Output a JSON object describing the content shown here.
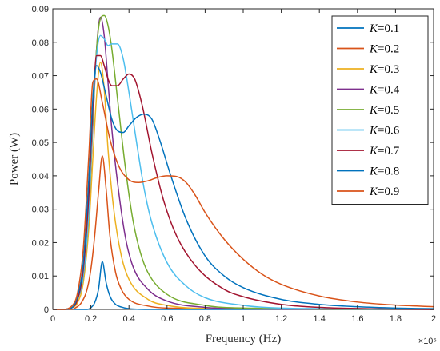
{
  "chart_data": {
    "type": "line",
    "xlabel": "Frequency (Hz)",
    "ylabel": "Power (W)",
    "x_multiplier_label": "×10⁵",
    "xlim": [
      0,
      2.0
    ],
    "ylim": [
      0,
      0.09
    ],
    "xticks": [
      "0",
      "0.2",
      "0.4",
      "0.6",
      "0.8",
      "1",
      "1.2",
      "1.4",
      "1.6",
      "1.8",
      "2"
    ],
    "yticks": [
      "0",
      "0.01",
      "0.02",
      "0.03",
      "0.04",
      "0.05",
      "0.06",
      "0.07",
      "0.08",
      "0.09"
    ],
    "grid": false,
    "legend_position": "top-right",
    "series": [
      {
        "name": "K=0.1",
        "label_var": "K",
        "label_val": "=0.1",
        "color": "#0072BD",
        "x": [
          0,
          0.05,
          0.1,
          0.15,
          0.18,
          0.2,
          0.22,
          0.24,
          0.26,
          0.28,
          0.3,
          0.33,
          0.36,
          0.4,
          0.5,
          0.6,
          2.0
        ],
        "y": [
          0,
          0,
          0,
          0,
          0,
          0.0005,
          0.002,
          0.006,
          0.0143,
          0.008,
          0.004,
          0.0015,
          0.0007,
          0.0002,
          0,
          0,
          0
        ]
      },
      {
        "name": "K=0.2",
        "label_var": "K",
        "label_val": "=0.2",
        "color": "#D95319",
        "x": [
          0,
          0.05,
          0.1,
          0.12,
          0.15,
          0.18,
          0.2,
          0.22,
          0.24,
          0.26,
          0.28,
          0.3,
          0.33,
          0.36,
          0.4,
          0.5,
          0.6,
          2.0
        ],
        "y": [
          0,
          0,
          0,
          0.0005,
          0.002,
          0.006,
          0.012,
          0.022,
          0.035,
          0.046,
          0.036,
          0.022,
          0.011,
          0.006,
          0.003,
          0.001,
          0.0004,
          0
        ]
      },
      {
        "name": "K=0.3",
        "label_var": "K",
        "label_val": "=0.3",
        "color": "#EDB120",
        "x": [
          0,
          0.05,
          0.1,
          0.13,
          0.16,
          0.19,
          0.21,
          0.23,
          0.25,
          0.27,
          0.29,
          0.32,
          0.36,
          0.4,
          0.5,
          0.6,
          0.8,
          2.0
        ],
        "y": [
          0,
          0,
          0.0005,
          0.002,
          0.008,
          0.025,
          0.045,
          0.064,
          0.074,
          0.066,
          0.048,
          0.03,
          0.016,
          0.009,
          0.003,
          0.0012,
          0.0003,
          0
        ]
      },
      {
        "name": "K=0.4",
        "label_var": "K",
        "label_val": "=0.4",
        "color": "#7E2F8E",
        "x": [
          0,
          0.05,
          0.1,
          0.13,
          0.16,
          0.19,
          0.21,
          0.23,
          0.25,
          0.27,
          0.29,
          0.31,
          0.34,
          0.38,
          0.42,
          0.5,
          0.6,
          0.8,
          1.0,
          2.0
        ],
        "y": [
          0,
          0,
          0.0005,
          0.003,
          0.01,
          0.03,
          0.055,
          0.078,
          0.0875,
          0.082,
          0.068,
          0.054,
          0.038,
          0.022,
          0.013,
          0.006,
          0.0025,
          0.0006,
          0.0002,
          0
        ]
      },
      {
        "name": "K=0.5",
        "label_var": "K",
        "label_val": "=0.5",
        "color": "#77AC30",
        "x": [
          0,
          0.05,
          0.1,
          0.13,
          0.16,
          0.19,
          0.21,
          0.23,
          0.25,
          0.27,
          0.29,
          0.31,
          0.34,
          0.38,
          0.42,
          0.46,
          0.5,
          0.6,
          0.8,
          1.0,
          2.0
        ],
        "y": [
          0,
          0,
          0.0005,
          0.003,
          0.01,
          0.03,
          0.056,
          0.078,
          0.087,
          0.088,
          0.085,
          0.078,
          0.063,
          0.043,
          0.027,
          0.017,
          0.011,
          0.0045,
          0.0012,
          0.0004,
          0
        ]
      },
      {
        "name": "K=0.6",
        "label_var": "K",
        "label_val": "=0.6",
        "color": "#4DBEEE",
        "x": [
          0,
          0.05,
          0.1,
          0.13,
          0.16,
          0.19,
          0.21,
          0.23,
          0.25,
          0.27,
          0.29,
          0.31,
          0.34,
          0.37,
          0.4,
          0.44,
          0.48,
          0.52,
          0.6,
          0.7,
          0.8,
          1.0,
          1.2,
          2.0
        ],
        "y": [
          0,
          0,
          0.0005,
          0.003,
          0.01,
          0.03,
          0.058,
          0.076,
          0.082,
          0.081,
          0.079,
          0.0795,
          0.0795,
          0.075,
          0.065,
          0.05,
          0.036,
          0.026,
          0.014,
          0.007,
          0.0035,
          0.0012,
          0.0004,
          0
        ]
      },
      {
        "name": "K=0.7",
        "label_var": "K",
        "label_val": "=0.7",
        "color": "#A2142F",
        "x": [
          0,
          0.05,
          0.1,
          0.13,
          0.16,
          0.19,
          0.21,
          0.23,
          0.25,
          0.27,
          0.29,
          0.31,
          0.34,
          0.37,
          0.4,
          0.43,
          0.47,
          0.52,
          0.58,
          0.65,
          0.75,
          0.9,
          1.0,
          1.2,
          1.4,
          2.0
        ],
        "y": [
          0,
          0,
          0.0005,
          0.003,
          0.012,
          0.035,
          0.06,
          0.076,
          0.076,
          0.073,
          0.069,
          0.067,
          0.067,
          0.069,
          0.0705,
          0.069,
          0.061,
          0.047,
          0.033,
          0.022,
          0.013,
          0.006,
          0.0038,
          0.0015,
          0.0006,
          0
        ]
      },
      {
        "name": "K=0.8",
        "label_var": "K",
        "label_val": "=0.8",
        "color": "#0072BD",
        "x": [
          0,
          0.05,
          0.1,
          0.13,
          0.16,
          0.19,
          0.21,
          0.23,
          0.25,
          0.28,
          0.31,
          0.34,
          0.37,
          0.4,
          0.44,
          0.48,
          0.52,
          0.56,
          0.62,
          0.7,
          0.8,
          0.9,
          1.0,
          1.2,
          1.4,
          1.6,
          1.8,
          2.0
        ],
        "y": [
          0,
          0,
          0.0005,
          0.004,
          0.014,
          0.04,
          0.063,
          0.073,
          0.071,
          0.064,
          0.057,
          0.0535,
          0.053,
          0.055,
          0.0575,
          0.0585,
          0.057,
          0.051,
          0.04,
          0.027,
          0.016,
          0.01,
          0.0065,
          0.003,
          0.0015,
          0.0008,
          0.0004,
          0.0002
        ]
      },
      {
        "name": "K=0.9",
        "label_var": "K",
        "label_val": "=0.9",
        "color": "#D95319",
        "x": [
          0,
          0.05,
          0.1,
          0.13,
          0.16,
          0.19,
          0.21,
          0.23,
          0.26,
          0.3,
          0.35,
          0.4,
          0.45,
          0.5,
          0.55,
          0.6,
          0.65,
          0.7,
          0.75,
          0.8,
          0.9,
          1.0,
          1.1,
          1.2,
          1.4,
          1.6,
          1.8,
          2.0
        ],
        "y": [
          0,
          0,
          0.001,
          0.005,
          0.018,
          0.047,
          0.068,
          0.069,
          0.062,
          0.051,
          0.0425,
          0.0388,
          0.038,
          0.0385,
          0.0395,
          0.04,
          0.0398,
          0.038,
          0.034,
          0.029,
          0.021,
          0.015,
          0.0105,
          0.0075,
          0.004,
          0.0022,
          0.0013,
          0.0008
        ]
      }
    ]
  }
}
